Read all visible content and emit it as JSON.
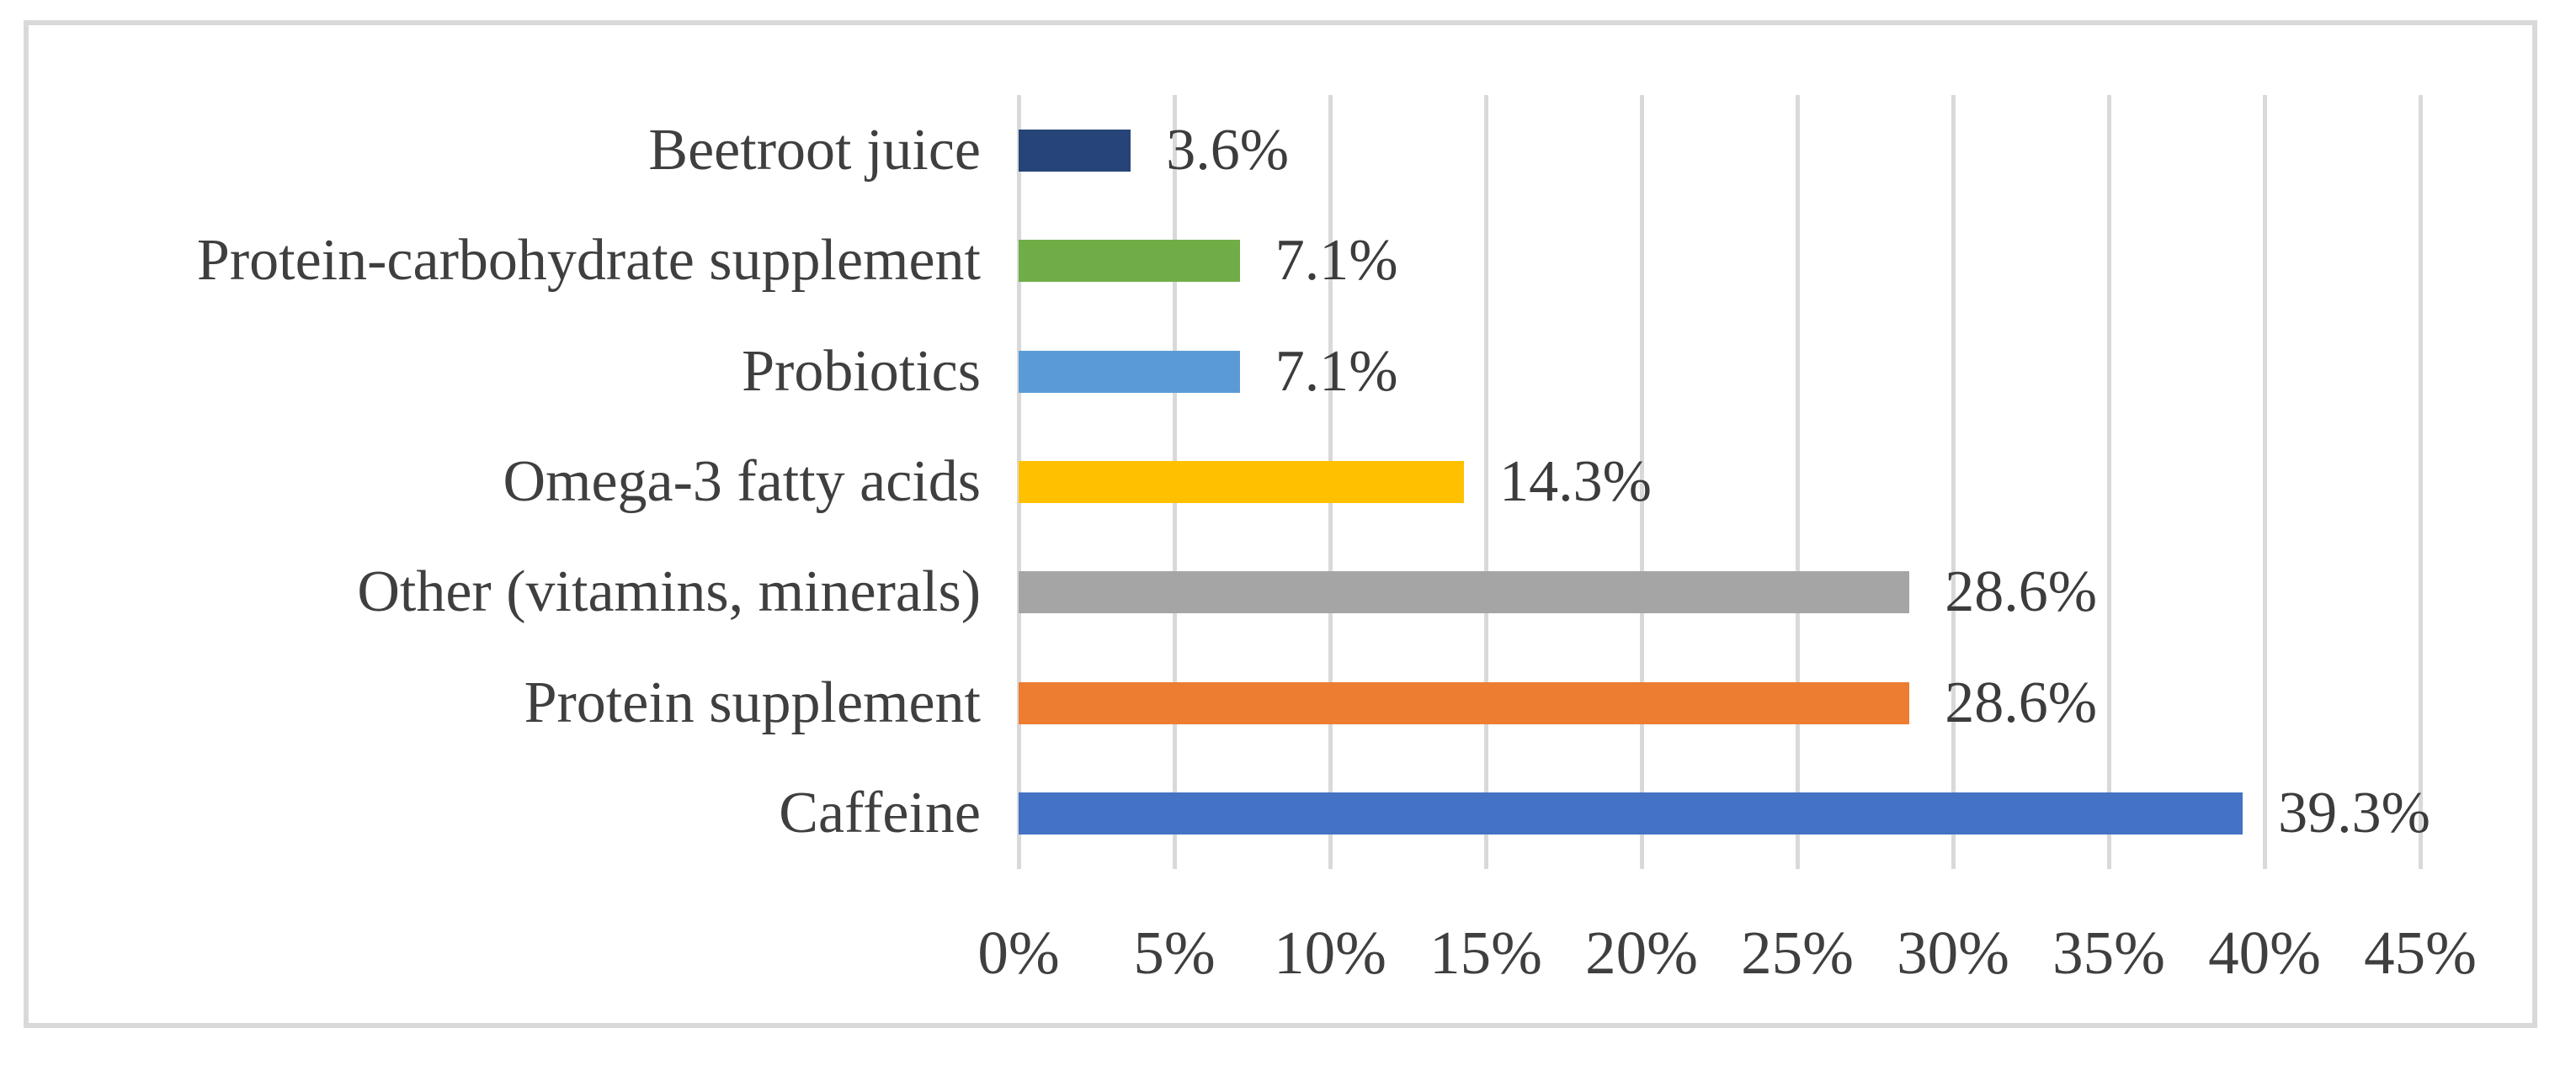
{
  "figure": {
    "background": "#FFFFFF",
    "border_color": "#D9D9D9"
  },
  "chart_data": {
    "type": "bar",
    "orientation": "horizontal",
    "title": "",
    "xlabel": "",
    "ylabel": "",
    "categories": [
      "Beetroot juice",
      "Protein-carbohydrate supplement",
      "Probiotics",
      "Omega-3 fatty acids",
      "Other (vitamins, minerals)",
      "Protein supplement",
      "Caffeine"
    ],
    "values": [
      3.6,
      7.1,
      7.1,
      14.3,
      28.6,
      28.6,
      39.3
    ],
    "value_labels": [
      "3.6%",
      "7.1%",
      "7.1%",
      "14.3%",
      "28.6%",
      "28.6%",
      "39.3%"
    ],
    "bar_colors": [
      "#264478",
      "#70AD47",
      "#5B9BD5",
      "#FFC000",
      "#A5A5A5",
      "#ED7D31",
      "#4472C4"
    ],
    "xlim": [
      0,
      45
    ],
    "x_ticks": [
      0,
      5,
      10,
      15,
      20,
      25,
      30,
      35,
      40,
      45
    ],
    "x_tick_labels": [
      "0%",
      "5%",
      "10%",
      "15%",
      "20%",
      "25%",
      "30%",
      "35%",
      "40%",
      "45%"
    ],
    "grid": "vertical",
    "gridline_color": "#D9D9D9",
    "category_label_color": "#3F3F3F",
    "value_label_color": "#3C3C3C",
    "tick_label_color": "#3F3F3F",
    "legend": "none"
  }
}
